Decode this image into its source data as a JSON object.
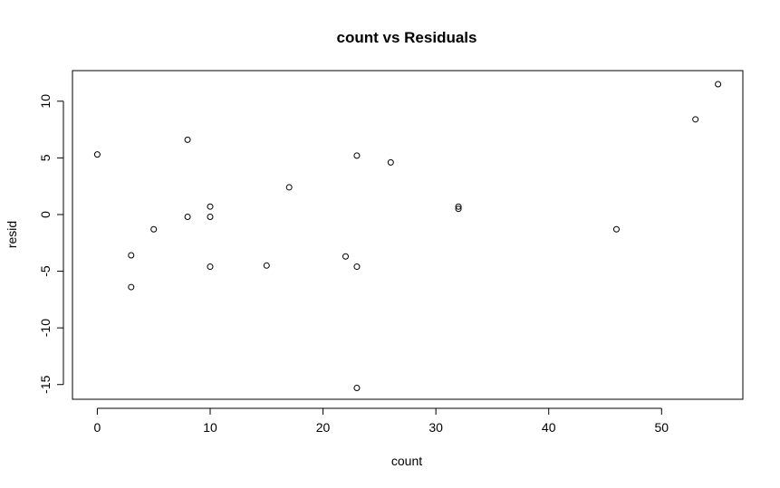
{
  "chart_data": {
    "type": "scatter",
    "title": "count vs Residuals",
    "xlabel": "count",
    "ylabel": "resid",
    "xlim": [
      -2.2,
      57.2
    ],
    "ylim": [
      -16.3,
      12.7
    ],
    "xticks": [
      0,
      10,
      20,
      30,
      40,
      50
    ],
    "yticks": [
      -15,
      -10,
      -5,
      0,
      5,
      10
    ],
    "grid": false,
    "points": [
      {
        "x": 0,
        "y": 5.3
      },
      {
        "x": 3,
        "y": -3.6
      },
      {
        "x": 3,
        "y": -6.4
      },
      {
        "x": 5,
        "y": -1.3
      },
      {
        "x": 8,
        "y": 6.6
      },
      {
        "x": 8,
        "y": -0.2
      },
      {
        "x": 10,
        "y": 0.7
      },
      {
        "x": 10,
        "y": -0.2
      },
      {
        "x": 10,
        "y": -4.6
      },
      {
        "x": 15,
        "y": -4.5
      },
      {
        "x": 17,
        "y": 2.4
      },
      {
        "x": 22,
        "y": -3.7
      },
      {
        "x": 23,
        "y": 5.2
      },
      {
        "x": 23,
        "y": -4.6
      },
      {
        "x": 23,
        "y": -15.3
      },
      {
        "x": 26,
        "y": 4.6
      },
      {
        "x": 32,
        "y": 0.7
      },
      {
        "x": 32,
        "y": 0.5
      },
      {
        "x": 46,
        "y": -1.3
      },
      {
        "x": 53,
        "y": 8.4
      },
      {
        "x": 55,
        "y": 11.5
      }
    ]
  }
}
